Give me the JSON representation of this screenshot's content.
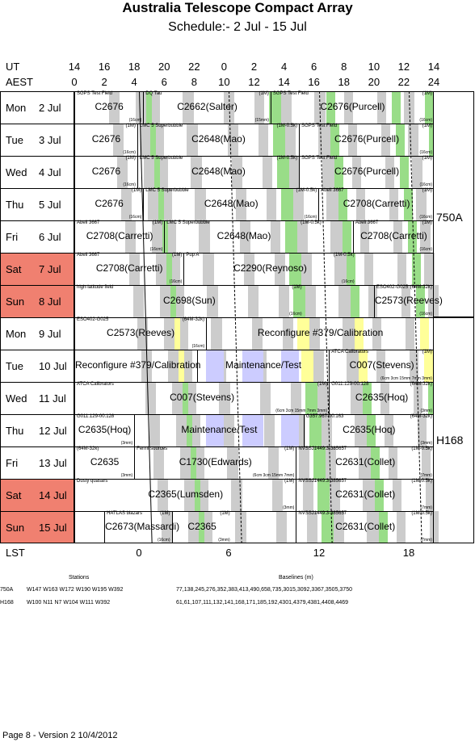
{
  "title": "Australia Telescope Compact Array",
  "subtitle": "Schedule:- 2  Jul - 15 Jul",
  "axis": {
    "ut_label": "UT",
    "aest_label": "AEST",
    "lst_label": "LST",
    "ut_ticks": [
      "14",
      "16",
      "18",
      "20",
      "22",
      "0",
      "2",
      "4",
      "6",
      "8",
      "10",
      "12",
      "14"
    ],
    "aest_ticks": [
      "0",
      "2",
      "4",
      "6",
      "8",
      "10",
      "12",
      "14",
      "16",
      "18",
      "20",
      "22",
      "24"
    ],
    "lst_ticks": [
      "0",
      "6",
      "12",
      "18"
    ]
  },
  "configs": [
    "750A",
    "H168"
  ],
  "days": [
    {
      "day": "Mon",
      "date": "2  Jul",
      "weekend": false,
      "blocks": [
        {
          "s": 0,
          "e": 4.6,
          "head": "SGPS Test Field",
          "right": "",
          "main": "C2676",
          "bottom": "(16cm)"
        },
        {
          "s": 4.6,
          "e": 13.1,
          "head": "DQ Tau",
          "right": "(1M)",
          "main": "C2662(Salter)",
          "bottom": "(15mm)"
        },
        {
          "s": 13.1,
          "e": 24,
          "head": "SGPS Test Field",
          "right": "(1M)",
          "main": "C2676(Purcell)",
          "bottom": "(16cm)"
        }
      ]
    },
    {
      "day": "Tue",
      "date": "3  Jul",
      "weekend": false,
      "blocks": [
        {
          "s": 0,
          "e": 4.2,
          "head": "",
          "right": "(1M)",
          "main": "C2676",
          "bottom": "(16cm)"
        },
        {
          "s": 4.2,
          "e": 15.0,
          "head": "LMC 5 Superbubble",
          "right": "(1M-0.5k)",
          "main": "C2648(Mao)",
          "bottom": ""
        },
        {
          "s": 15.0,
          "e": 24,
          "head": "SGPS Test Field",
          "right": "(1M)",
          "main": "C2676(Purcell)",
          "bottom": "(16cm)"
        }
      ]
    },
    {
      "day": "Wed",
      "date": "4  Jul",
      "weekend": false,
      "blocks": [
        {
          "s": 0,
          "e": 4.2,
          "head": "",
          "right": "(1M)",
          "main": "C2676",
          "bottom": "(16cm)"
        },
        {
          "s": 4.2,
          "e": 15.0,
          "head": "LMC 5 Superbubble",
          "right": "(1M-0.5k)",
          "main": "C2648(Mao)",
          "bottom": ""
        },
        {
          "s": 15.0,
          "e": 24,
          "head": "SGPS Test Field",
          "right": "(1M)",
          "main": "C2676(Purcell)",
          "bottom": "(16cm)"
        }
      ]
    },
    {
      "day": "Thu",
      "date": "5  Jul",
      "weekend": false,
      "blocks": [
        {
          "s": 0,
          "e": 4.6,
          "head": "",
          "right": "(1M)",
          "main": "C2676",
          "bottom": "(16cm)"
        },
        {
          "s": 4.6,
          "e": 16.3,
          "head": "LMC 5 Superbubble",
          "right": "(1M-0.5k)",
          "main": "C2648(Mao)",
          "bottom": "(16cm)"
        },
        {
          "s": 16.3,
          "e": 24,
          "head": "Abell 3667",
          "right": "(1M)",
          "main": "C2708(Carretti)",
          "bottom": "(16cm)"
        }
      ]
    },
    {
      "day": "Fri",
      "date": "6  Jul",
      "weekend": false,
      "blocks": [
        {
          "s": 0,
          "e": 6.0,
          "head": "Abell 3667",
          "right": "(1M)",
          "main": "C2708(Carretti)",
          "bottom": "(16cm)"
        },
        {
          "s": 6.0,
          "e": 16.6,
          "head": "LMC 5 Superbubble",
          "right": "(1M-0.5k)",
          "main": "C2648(Mao)",
          "bottom": ""
        },
        {
          "s": 18.6,
          "e": 24,
          "head": "Abell 3667",
          "right": "(1M)",
          "main": "C2708(Carretti)",
          "bottom": "(16cm)"
        }
      ]
    },
    {
      "day": "Sat",
      "date": "7  Jul",
      "weekend": true,
      "blocks": [
        {
          "s": 0,
          "e": 7.3,
          "head": "Abell 3667",
          "right": "(1M)",
          "main": "C2708(Carretti)",
          "bottom": "(16cm)"
        },
        {
          "s": 7.3,
          "e": 18.8,
          "head": "Pup A",
          "right": "(1M-0.5k)",
          "main": "C2290(Reynoso)",
          "bottom": "(16cm)"
        }
      ]
    },
    {
      "day": "Sun",
      "date": "8  Jul",
      "weekend": true,
      "blocks": [
        {
          "s": 0,
          "e": 15.3,
          "head": "high-latitude field",
          "right": "(1M)",
          "main": "C2698(Sun)",
          "bottom": "(16cm)"
        },
        {
          "s": 20.0,
          "e": 24,
          "head": "ESO402-G025",
          "right": "(64M-32k)",
          "main": "C2573(Reeves)",
          "bottom": "(16cm)"
        }
      ]
    },
    {
      "day": "Mon",
      "date": "9  Jul",
      "weekend": false,
      "blocks": [
        {
          "s": 0,
          "e": 8.8,
          "head": "ESO402-G025",
          "right": "(64M-32k)",
          "main": "C2573(Reeves)",
          "bottom": "(16cm)"
        },
        {
          "s": 8.8,
          "e": 24,
          "head": "",
          "right": "",
          "main": "Reconfigure #379/Calibration",
          "bottom": ""
        }
      ]
    },
    {
      "day": "Tue",
      "date": "10 Jul",
      "weekend": false,
      "blocks": [
        {
          "s": 0,
          "e": 8.2,
          "head": "",
          "right": "",
          "main": "Reconfigure #379/Calibration",
          "bottom": ""
        },
        {
          "s": 8.2,
          "e": 17.0,
          "head": "",
          "right": "",
          "main": "Maintenance/Test",
          "bottom": ""
        },
        {
          "s": 17.0,
          "e": 24,
          "head": "ATCA Calibrators",
          "right": "(1M)",
          "main": "C007(Stevens)",
          "bottom": "(6cm 3cm 15mm 7mm 3mm)"
        }
      ]
    },
    {
      "day": "Wed",
      "date": "11 Jul",
      "weekend": false,
      "blocks": [
        {
          "s": 0,
          "e": 17.0,
          "head": "ATCA Calibrators",
          "right": "(1M)",
          "main": "C007(Stevens)",
          "bottom": "(6cm 3cm 15mm 7mm 3mm)"
        },
        {
          "s": 17.0,
          "e": 24,
          "head": "G011.129-00.128",
          "right": "(64M-32k)",
          "main": "C2635(Hoq)",
          "bottom": "(3mm)"
        }
      ]
    },
    {
      "day": "Thu",
      "date": "12 Jul",
      "weekend": false,
      "blocks": [
        {
          "s": 0,
          "e": 4.0,
          "head": "G011.129-00.128",
          "right": "",
          "main": "C2635(Hoq)",
          "bottom": "(3mm)"
        },
        {
          "s": 4.0,
          "e": 15.3,
          "head": "",
          "right": "",
          "main": "Maintenance/Test",
          "bottom": ""
        },
        {
          "s": 15.3,
          "e": 24,
          "head": "G357.967-00.163",
          "right": "(64M-32k)",
          "main": "C2635(Hoq)",
          "bottom": "(3mm)"
        }
      ]
    },
    {
      "day": "Fri",
      "date": "13 Jul",
      "weekend": false,
      "blocks": [
        {
          "s": 0,
          "e": 4.0,
          "head": "(64M-32k)",
          "right": "",
          "main": "C2635",
          "bottom": "(3mm)"
        },
        {
          "s": 4.0,
          "e": 14.8,
          "head": "Fermi sources",
          "right": "(1M)",
          "main": "C1730(Edwards)",
          "bottom": "(6cm 3cm 15mm 7mm)"
        },
        {
          "s": 14.8,
          "e": 24,
          "head": "NVSSJ1449.3-385657",
          "right": "(1M-0.5k)",
          "main": "C2631(Collet)",
          "bottom": "(7mm)"
        }
      ]
    },
    {
      "day": "Sat",
      "date": "14 Jul",
      "weekend": true,
      "blocks": [
        {
          "s": 0,
          "e": 14.8,
          "head": "Dusty quasars",
          "right": "(1M)",
          "main": "C2365(Lumsden)",
          "bottom": "(3mm)"
        },
        {
          "s": 14.8,
          "e": 24,
          "head": "NVSSJ1449.3-385657",
          "right": "(1M-0.5k)",
          "main": "C2631(Collet)",
          "bottom": "(7mm)"
        }
      ]
    },
    {
      "day": "Sun",
      "date": "15 Jul",
      "weekend": true,
      "blocks": [
        {
          "s": 0,
          "e": 2.0,
          "head": "",
          "right": "",
          "main": "",
          "bottom": ""
        },
        {
          "s": 2.0,
          "e": 6.5,
          "head": "HATLAS blazars",
          "right": "(1M)",
          "main": "C2673(Massardi)",
          "bottom": "(16cm)"
        },
        {
          "s": 6.5,
          "e": 10.5,
          "head": "",
          "right": "(1M)",
          "main": "C2365",
          "bottom": "(3mm)"
        },
        {
          "s": 14.8,
          "e": 24,
          "head": "NVSSJ1449.3-385657",
          "right": "(1M-0.5k)",
          "main": "C2631(Collet)",
          "bottom": "(7mm)"
        }
      ]
    }
  ],
  "footer": {
    "stations_header": "Stations",
    "baselines_header": "Baselines (m)",
    "rows": [
      {
        "config": "750A",
        "stations": "W147 W163 W172 W190 W195 W392",
        "baselines": "77,138,245,276,352,383,413,490,658,735,3015,3092,3367,3505,3750"
      },
      {
        "config": "H168",
        "stations": "W100 N11 N7 W104 W111 W392",
        "baselines": "61,61,107,111,132,141,168,171,185,192,4301,4379,4381,4408,4469"
      }
    ],
    "page": "Page 8 - Version 2  10/4/2012"
  },
  "colors": {
    "weekend": "#f08070",
    "band_grey": "#cccccc",
    "band_green": "#99dd88",
    "band_yellow": "#ffff99",
    "band_blue": "#ccccff",
    "border": "#000000"
  }
}
